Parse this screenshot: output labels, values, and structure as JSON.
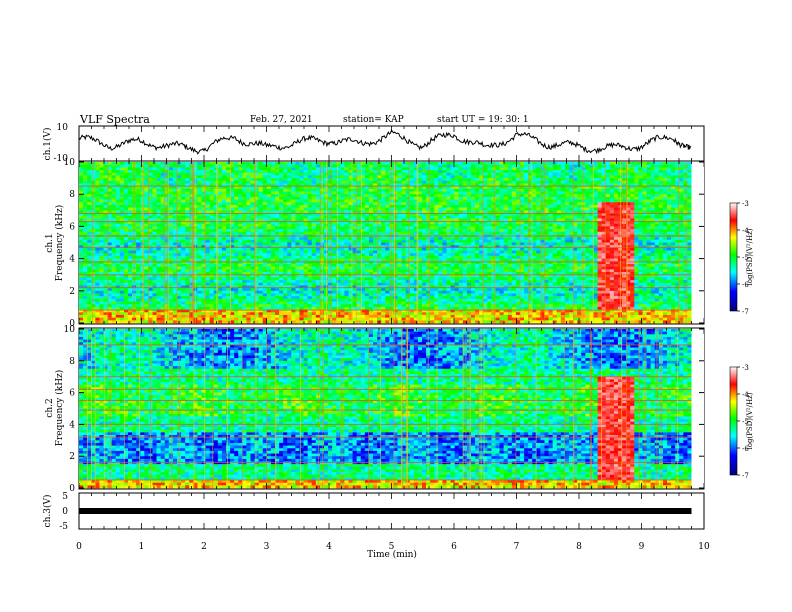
{
  "header": {
    "title": "VLF Spectra",
    "date": "Feb. 27, 2021",
    "station": "station= KAP",
    "start": "start  UT =   19: 30: 1"
  },
  "chart_data": [
    {
      "type": "line",
      "panel": "ch1-waveform",
      "ylabel": "ch.1(V)",
      "ylim": [
        -10,
        10
      ],
      "yticks": [
        "10",
        "-10"
      ],
      "x": [
        0,
        0.5,
        1,
        1.5,
        2,
        2.5,
        3,
        3.5,
        4,
        4.5,
        5,
        5.5,
        6,
        6.5,
        7,
        7.5,
        8,
        8.5,
        9,
        9.5,
        9.8
      ],
      "y": [
        3,
        -1,
        1,
        -2,
        -3,
        4,
        -3,
        1,
        2,
        0,
        5,
        -1,
        6,
        -3,
        5,
        0,
        -2,
        -3,
        -1,
        4,
        -3
      ],
      "series_color": "#000000"
    },
    {
      "type": "heatmap",
      "panel": "ch1-spectrogram",
      "ylabel": "ch.1",
      "ylabel2": "Frequency (kHz)",
      "ylim": [
        0,
        10
      ],
      "yticks": [
        "0",
        "2",
        "4",
        "6",
        "8",
        "10"
      ],
      "xlim": [
        0,
        9.8
      ],
      "colorbar": {
        "label": "log(PSD)(V²/Hz)",
        "range": [
          -7,
          -3
        ],
        "ticks": [
          "-3",
          "-4",
          "-5",
          "-6",
          "-7"
        ]
      },
      "emission_band": {
        "t_start": 8.3,
        "t_end": 8.9,
        "f_low": 0.8,
        "f_high": 7.5
      },
      "lines_kHz": [
        0.8,
        2.2,
        3.0,
        3.8,
        4.7,
        5.4,
        6.3,
        6.8,
        8.5
      ]
    },
    {
      "type": "heatmap",
      "panel": "ch2-spectrogram",
      "ylabel": "ch.2",
      "ylabel2": "Frequency (kHz)",
      "ylim": [
        0,
        10
      ],
      "yticks": [
        "0",
        "2",
        "4",
        "6",
        "8",
        "10"
      ],
      "xlim": [
        0,
        9.8
      ],
      "colorbar": {
        "label": "log(PSD)(V²/Hz)",
        "range": [
          -7,
          -3
        ],
        "ticks": [
          "-3",
          "-4",
          "-5",
          "-6",
          "-7"
        ]
      },
      "emission_band": {
        "t_start": 8.3,
        "t_end": 8.9,
        "f_low": 0.5,
        "f_high": 7.0
      },
      "lines_kHz": [
        0.5,
        1.6,
        3.2,
        4.0,
        4.9,
        5.5,
        6.2,
        7.0,
        9.0
      ]
    },
    {
      "type": "line",
      "panel": "ch3-waveform",
      "ylabel": "ch.3(V)",
      "ylim": [
        -5,
        5
      ],
      "yticks": [
        "5",
        "0",
        "-5"
      ],
      "x": [
        0,
        9.8
      ],
      "y": [
        0,
        0
      ],
      "xlabel": "Time  (min)",
      "xlim": [
        0,
        10
      ],
      "xticks": [
        "0",
        "1",
        "2",
        "3",
        "4",
        "5",
        "6",
        "7",
        "8",
        "9",
        "10"
      ]
    }
  ]
}
